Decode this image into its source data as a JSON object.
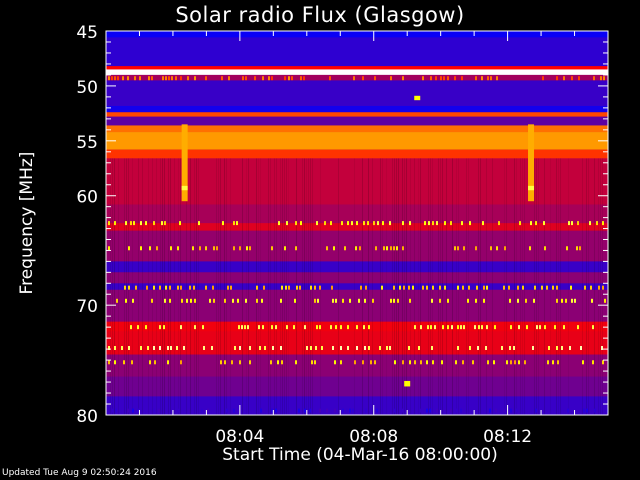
{
  "title": "Solar radio Flux (Glasgow)",
  "updated": "Updated Tue Aug  9 02:50:24 2016",
  "colors": {
    "background": "#000000",
    "axis": "#ffffff",
    "low": "#0000ff",
    "mid": "#ff0000",
    "high": "#ffff00",
    "saturated": "#ffffff"
  },
  "chart_data": {
    "type": "heatmap",
    "title": "Solar radio Flux (Glasgow)",
    "xlabel": "Start Time (04-Mar-16 08:00:00)",
    "ylabel": "Frequency [MHz]",
    "xlim": [
      0,
      15
    ],
    "ylim": [
      45,
      80
    ],
    "y_scale": "reversed, compressed toward high frequency",
    "x_ticks": [
      {
        "value": 4,
        "label": "08:04"
      },
      {
        "value": 8,
        "label": "08:08"
      },
      {
        "value": 12,
        "label": "08:12"
      }
    ],
    "y_ticks": [
      {
        "value": 45,
        "label": "45"
      },
      {
        "value": 50,
        "label": "50"
      },
      {
        "value": 55,
        "label": "55"
      },
      {
        "value": 60,
        "label": "60"
      },
      {
        "value": 70,
        "label": "70"
      },
      {
        "value": 80,
        "label": "80"
      }
    ],
    "y_minor_ticks": [
      46,
      47,
      48,
      49,
      51,
      52,
      53,
      54,
      56,
      57,
      58,
      59,
      61,
      62,
      63,
      64,
      65,
      66,
      67,
      68,
      69,
      71,
      72,
      73,
      74,
      75,
      76,
      77,
      78,
      79
    ],
    "x_minor_ticks": [
      0,
      1,
      2,
      3,
      5,
      6,
      7,
      9,
      10,
      11,
      13,
      14
    ],
    "intensity_scale": "0 = blue (low), 0.55 = red, 0.8 = yellow, 1 = white (high)",
    "frequency_bands": [
      {
        "from": 45.0,
        "to": 45.6,
        "level": 0.02
      },
      {
        "from": 45.6,
        "to": 48.2,
        "level": 0.1
      },
      {
        "from": 48.2,
        "to": 48.5,
        "level": 0.55
      },
      {
        "from": 48.5,
        "to": 49.0,
        "level": 1.0
      },
      {
        "from": 49.0,
        "to": 49.5,
        "level": 0.35
      },
      {
        "from": 49.5,
        "to": 51.8,
        "level": 0.12
      },
      {
        "from": 51.8,
        "to": 52.4,
        "level": 0.04
      },
      {
        "from": 52.4,
        "to": 52.8,
        "level": 0.62
      },
      {
        "from": 52.8,
        "to": 53.6,
        "level": 0.2
      },
      {
        "from": 53.6,
        "to": 54.2,
        "level": 0.66
      },
      {
        "from": 54.2,
        "to": 55.8,
        "level": 0.7
      },
      {
        "from": 55.8,
        "to": 56.6,
        "level": 0.6
      },
      {
        "from": 56.6,
        "to": 60.8,
        "level": 0.42
      },
      {
        "from": 60.8,
        "to": 62.5,
        "level": 0.36
      },
      {
        "from": 62.5,
        "to": 63.2,
        "level": 0.48
      },
      {
        "from": 63.2,
        "to": 66.0,
        "level": 0.32
      },
      {
        "from": 66.0,
        "to": 67.0,
        "level": 0.12
      },
      {
        "from": 67.0,
        "to": 68.0,
        "level": 0.3
      },
      {
        "from": 68.0,
        "to": 68.6,
        "level": 0.12
      },
      {
        "from": 68.6,
        "to": 71.5,
        "level": 0.3
      },
      {
        "from": 71.5,
        "to": 72.4,
        "level": 0.52
      },
      {
        "from": 72.4,
        "to": 74.5,
        "level": 0.5
      },
      {
        "from": 74.5,
        "to": 76.5,
        "level": 0.3
      },
      {
        "from": 76.5,
        "to": 78.3,
        "level": 0.24
      },
      {
        "from": 78.3,
        "to": 80.0,
        "level": 0.12
      }
    ],
    "bursts": [
      {
        "time": 2.35,
        "from": 53.5,
        "to": 60.5,
        "level": 0.72
      },
      {
        "time": 2.35,
        "from": 59.1,
        "to": 59.5,
        "level": 0.85
      },
      {
        "time": 12.7,
        "from": 53.5,
        "to": 60.5,
        "level": 0.72
      },
      {
        "time": 12.7,
        "from": 59.1,
        "to": 59.5,
        "level": 0.85
      },
      {
        "time": 9.3,
        "from": 50.9,
        "to": 51.3,
        "level": 0.8
      },
      {
        "time": 9.0,
        "from": 76.9,
        "to": 77.4,
        "level": 0.8
      }
    ]
  }
}
